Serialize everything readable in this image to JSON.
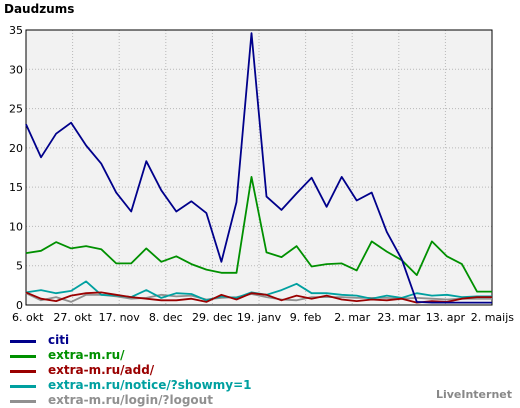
{
  "title": "Daudzums",
  "watermark": "LiveInternet",
  "chart_data": {
    "type": "line",
    "title": "Daudzums",
    "xlabel": "",
    "ylabel": "",
    "ylim": [
      0,
      35
    ],
    "y_ticks": [
      0,
      5,
      10,
      15,
      20,
      25,
      30,
      35
    ],
    "x_tick_labels": [
      "6. okt",
      "27. okt",
      "17. nov",
      "8. dec",
      "29. dec",
      "19. janv",
      "9. feb",
      "2. mar",
      "23. mar",
      "13. apr",
      "2. maijs"
    ],
    "grid": true,
    "legend_position": "bottom-left",
    "series": [
      {
        "name": "citi",
        "color": "#00008b",
        "values": [
          23,
          18.8,
          21.8,
          23.2,
          20.3,
          18,
          14.3,
          11.9,
          18.3,
          14.6,
          11.9,
          13.2,
          11.7,
          5.5,
          13.1,
          34.6,
          13.8,
          12.1,
          14.2,
          16.2,
          12.5,
          16.3,
          13.3,
          14.3,
          9.3,
          5.8,
          0.4,
          0.3,
          0.3,
          0.3,
          0.3,
          0.3
        ]
      },
      {
        "name": "extra-m.ru/",
        "color": "#009000",
        "values": [
          6.6,
          6.9,
          8,
          7.2,
          7.5,
          7.1,
          5.3,
          5.3,
          7.2,
          5.5,
          6.2,
          5.2,
          4.5,
          4.1,
          4.1,
          16.3,
          6.7,
          6.1,
          7.5,
          4.9,
          5.2,
          5.3,
          4.4,
          8.1,
          6.8,
          5.7,
          3.8,
          8.1,
          6.2,
          5.2,
          1.7,
          1.7
        ]
      },
      {
        "name": "extra-m.ru/add/",
        "color": "#9a0000",
        "values": [
          1.6,
          0.8,
          0.5,
          1.2,
          1.5,
          1.6,
          1.3,
          1.0,
          0.8,
          0.6,
          0.6,
          0.8,
          0.4,
          1.3,
          0.7,
          1.5,
          1.3,
          0.6,
          1.2,
          0.8,
          1.2,
          0.7,
          0.5,
          0.7,
          0.6,
          0.8,
          0.3,
          0.5,
          0.4,
          0.8,
          1.0,
          1.0
        ]
      },
      {
        "name": "extra-m.ru/notice/?showmy=1",
        "color": "#00a0a0",
        "values": [
          1.6,
          1.9,
          1.5,
          1.8,
          3.0,
          1.3,
          1.2,
          1.0,
          1.9,
          0.9,
          1.5,
          1.4,
          0.6,
          1.1,
          0.9,
          1.6,
          1.3,
          1.9,
          2.7,
          1.5,
          1.5,
          1.3,
          1.2,
          0.8,
          1.2,
          0.9,
          1.5,
          1.2,
          1.3,
          1.0,
          1.1,
          1.1
        ]
      },
      {
        "name": "extra-m.ru/login/?logout",
        "color": "#909090",
        "values": [
          1.5,
          0.6,
          1.0,
          0.4,
          1.3,
          1.3,
          1.1,
          0.8,
          0.9,
          1.3,
          1.1,
          1.2,
          0.7,
          0.9,
          1.0,
          1.4,
          1.0,
          0.7,
          0.6,
          1.0,
          1.0,
          1.0,
          0.9,
          0.9,
          0.9,
          0.8,
          0.9,
          0.8,
          0.7,
          0.8,
          0.8,
          0.8
        ]
      }
    ]
  }
}
